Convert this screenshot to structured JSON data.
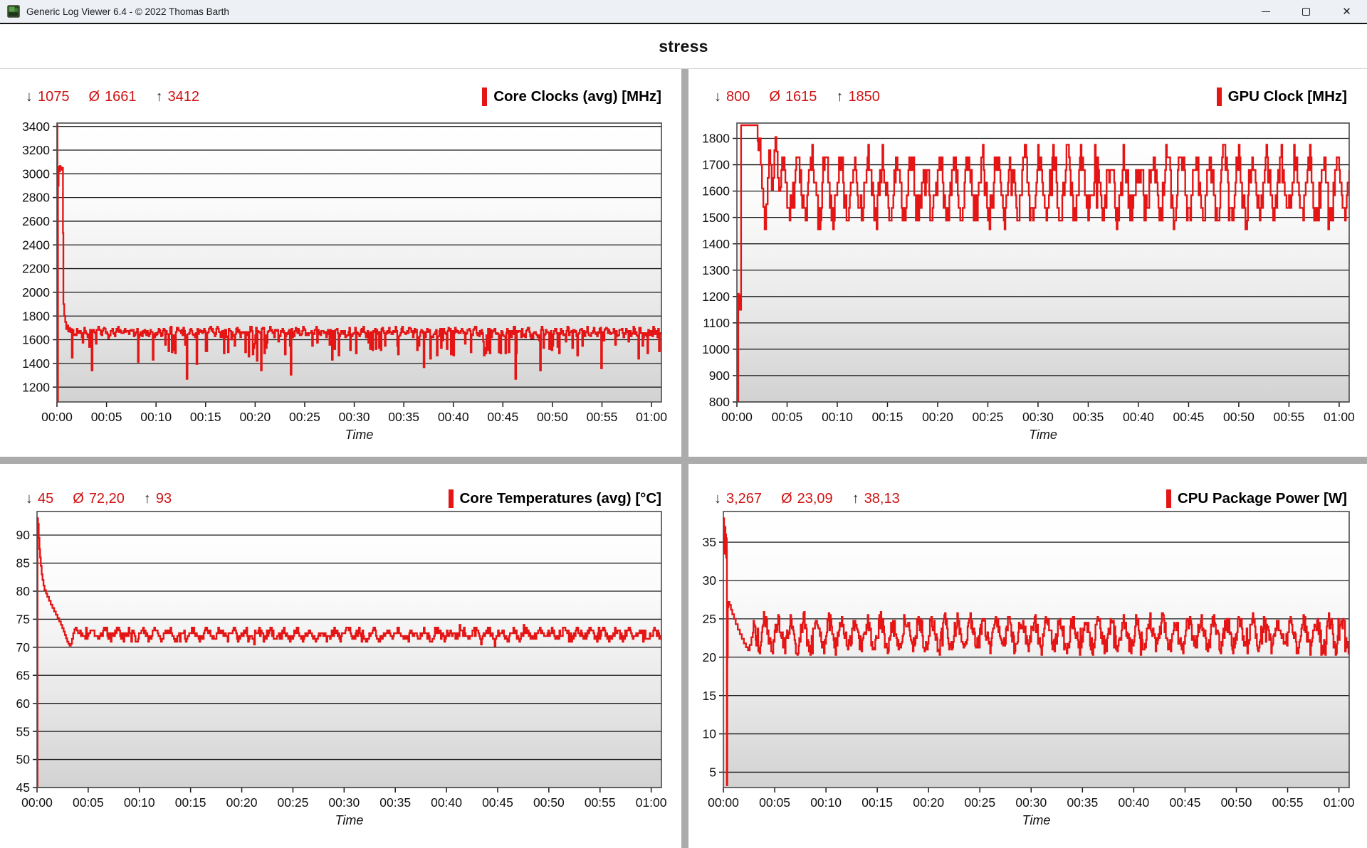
{
  "window": {
    "title": "Generic Log Viewer 6.4 - © 2022 Thomas Barth",
    "controls": {
      "minimize": "minimize",
      "maximize": "maximize",
      "close": "✕"
    }
  },
  "header": {
    "title": "stress"
  },
  "symbols": {
    "min": "↓",
    "avg": "Ø",
    "max": "↑"
  },
  "colors": {
    "accent_red": "#e51515",
    "stat_red": "#cf1212",
    "grid_line": "#1a1a1a",
    "plot_border": "#4a4a4a",
    "divider_gray": "#ababab",
    "plot_gradient_top": "#ffffff",
    "plot_gradient_bottom": "#d2d2d2"
  },
  "chart_data": [
    {
      "name": "core-clocks",
      "type": "line",
      "title": "Core Clocks (avg) [MHz]",
      "stats": {
        "min": "1075",
        "avg": "1661",
        "max": "3412"
      },
      "xlabel": "Time",
      "x_ticks": [
        "00:00",
        "00:05",
        "00:10",
        "00:15",
        "00:20",
        "00:25",
        "00:30",
        "00:35",
        "00:40",
        "00:45",
        "00:50",
        "00:55",
        "01:00"
      ],
      "xlim_seconds": [
        0,
        3660
      ],
      "ylim": [
        1075,
        3428
      ],
      "y_ticks": [
        3400,
        3200,
        3000,
        2800,
        2600,
        2400,
        2200,
        2000,
        1800,
        1600,
        1400,
        1200
      ],
      "series": {
        "transient": [
          [
            0,
            1990
          ],
          [
            2,
            3412
          ],
          [
            3,
            2400
          ],
          [
            4,
            1075
          ],
          [
            6,
            2900
          ],
          [
            10,
            3060
          ],
          [
            14,
            3020
          ],
          [
            18,
            3066
          ],
          [
            22,
            3035
          ],
          [
            26,
            3052
          ],
          [
            30,
            3040
          ],
          [
            33,
            3050
          ],
          [
            36,
            2500
          ],
          [
            39,
            1900
          ],
          [
            44,
            1800
          ],
          [
            50,
            1750
          ],
          [
            56,
            1690
          ],
          [
            62,
            1720
          ],
          [
            68,
            1670
          ],
          [
            74,
            1700
          ],
          [
            80,
            1665
          ],
          [
            86,
            1690
          ]
        ],
        "steady": {
          "from": 90,
          "to": 3660,
          "step": 5,
          "seed": 7,
          "base": 1664,
          "wave_amp": 20,
          "wave_period": 40,
          "noise": 30,
          "quant": 9,
          "dips": {
            "chance": 0.13,
            "min": 60,
            "max": 210
          },
          "dips2": {
            "chance": 0.013,
            "min": 280,
            "max": 400
          },
          "clamp": [
            1270,
            1758
          ]
        }
      }
    },
    {
      "name": "gpu-clock",
      "type": "line",
      "title": "GPU Clock [MHz]",
      "stats": {
        "min": "800",
        "avg": "1615",
        "max": "1850"
      },
      "xlabel": "Time",
      "x_ticks": [
        "00:00",
        "00:05",
        "00:10",
        "00:15",
        "00:20",
        "00:25",
        "00:30",
        "00:35",
        "00:40",
        "00:45",
        "00:50",
        "00:55",
        "01:00"
      ],
      "xlim_seconds": [
        0,
        3660
      ],
      "ylim": [
        800,
        1858
      ],
      "y_ticks": [
        1800,
        1700,
        1600,
        1500,
        1400,
        1300,
        1200,
        1100,
        1000,
        900,
        800
      ],
      "series": {
        "transient": [
          [
            0,
            800
          ],
          [
            6,
            800
          ],
          [
            8,
            1210
          ],
          [
            11,
            1150
          ],
          [
            14,
            1205
          ],
          [
            18,
            1150
          ],
          [
            22,
            1150
          ],
          [
            25,
            1850
          ],
          [
            118,
            1850
          ],
          [
            124,
            1790
          ],
          [
            128,
            1755
          ],
          [
            134,
            1800
          ],
          [
            142,
            1700
          ],
          [
            150,
            1610
          ],
          [
            158,
            1540
          ],
          [
            166,
            1455
          ],
          [
            175,
            1550
          ],
          [
            184,
            1650
          ],
          [
            192,
            1755
          ],
          [
            200,
            1700
          ],
          [
            208,
            1605
          ],
          [
            216,
            1650
          ],
          [
            224,
            1755
          ],
          [
            230,
            1805
          ],
          [
            236,
            1750
          ],
          [
            244,
            1650
          ],
          [
            252,
            1600
          ],
          [
            260,
            1615
          ]
        ],
        "steady": {
          "from": 265,
          "to": 3660,
          "step": 5,
          "seed": 11,
          "base": 1612,
          "wave_amp": 105,
          "wave_period": 85,
          "noise": 58,
          "quant": 48,
          "spikes": {
            "chance": 0.02,
            "min": 40,
            "max": 60
          },
          "dips": {
            "chance": 0.02,
            "min": 60,
            "max": 110
          },
          "clamp": [
            1455,
            1805
          ]
        }
      }
    },
    {
      "name": "core-temperatures",
      "type": "line",
      "title": "Core Temperatures (avg) [°C]",
      "stats": {
        "min": "45",
        "avg": "72,20",
        "max": "93"
      },
      "xlabel": "Time",
      "x_ticks": [
        "00:00",
        "00:05",
        "00:10",
        "00:15",
        "00:20",
        "00:25",
        "00:30",
        "00:35",
        "00:40",
        "00:45",
        "00:50",
        "00:55",
        "01:00"
      ],
      "xlim_seconds": [
        0,
        3660
      ],
      "ylim": [
        45,
        94.2
      ],
      "y_ticks": [
        90,
        85,
        80,
        75,
        70,
        65,
        60,
        55,
        50,
        45
      ],
      "series": {
        "transient": [
          [
            0,
            45
          ],
          [
            2,
            45
          ],
          [
            3,
            93
          ],
          [
            6,
            92
          ],
          [
            10,
            89.5
          ],
          [
            14,
            87.5
          ],
          [
            18,
            86
          ],
          [
            22,
            84.5
          ],
          [
            27,
            83
          ],
          [
            32,
            82
          ],
          [
            38,
            81
          ],
          [
            44,
            80.2
          ],
          [
            52,
            79.6
          ],
          [
            60,
            79
          ],
          [
            70,
            78.3
          ],
          [
            80,
            77.6
          ],
          [
            90,
            77
          ],
          [
            100,
            76.4
          ],
          [
            110,
            75.8
          ],
          [
            120,
            75.2
          ],
          [
            130,
            74.6
          ],
          [
            140,
            74
          ],
          [
            148,
            73.4
          ],
          [
            156,
            72.8
          ],
          [
            163,
            72.2
          ],
          [
            170,
            71.6
          ],
          [
            177,
            71
          ],
          [
            184,
            70.6
          ],
          [
            191,
            70.3
          ],
          [
            198,
            70.6
          ],
          [
            205,
            71.5
          ],
          [
            212,
            72.5
          ],
          [
            219,
            73.2
          ],
          [
            226,
            73.5
          ],
          [
            233,
            73
          ],
          [
            240,
            72.5
          ],
          [
            247,
            72.5
          ]
        ],
        "steady": {
          "from": 252,
          "to": 3660,
          "step": 5,
          "seed": 3,
          "base": 72.3,
          "wave_amp": 0.7,
          "wave_period": 75,
          "noise": 0.75,
          "quant": 0.5,
          "spikes": {
            "chance": 0.02,
            "min": 0.5,
            "max": 1.2
          },
          "dips": {
            "chance": 0.015,
            "min": 1,
            "max": 1.5
          },
          "clamp": [
            70.2,
            74.5
          ]
        }
      }
    },
    {
      "name": "cpu-package-power",
      "type": "line",
      "title": "CPU Package Power [W]",
      "stats": {
        "min": "3,267",
        "avg": "23,09",
        "max": "38,13"
      },
      "xlabel": "Time",
      "x_ticks": [
        "00:00",
        "00:05",
        "00:10",
        "00:15",
        "00:20",
        "00:25",
        "00:30",
        "00:35",
        "00:40",
        "00:45",
        "00:50",
        "00:55",
        "01:00"
      ],
      "xlim_seconds": [
        0,
        3660
      ],
      "ylim": [
        3,
        39
      ],
      "y_ticks": [
        35,
        30,
        25,
        20,
        15,
        10,
        5
      ],
      "series": {
        "transient": [
          [
            0,
            35.5
          ],
          [
            2,
            38.13
          ],
          [
            4,
            34
          ],
          [
            6,
            36.5
          ],
          [
            8,
            33.5
          ],
          [
            10,
            37
          ],
          [
            12,
            34.5
          ],
          [
            14,
            36
          ],
          [
            16,
            33
          ],
          [
            18,
            35.5
          ],
          [
            20,
            34
          ],
          [
            21,
            3.3
          ],
          [
            23,
            20
          ],
          [
            26,
            26.5
          ],
          [
            30,
            27.2
          ],
          [
            36,
            26.8
          ],
          [
            44,
            26.2
          ],
          [
            52,
            25.6
          ],
          [
            62,
            25
          ],
          [
            72,
            24.3
          ],
          [
            84,
            23.6
          ],
          [
            96,
            23
          ],
          [
            108,
            22.4
          ],
          [
            120,
            21.8
          ],
          [
            132,
            21.3
          ],
          [
            144,
            20.9
          ],
          [
            154,
            21.6
          ],
          [
            164,
            22.6
          ],
          [
            172,
            23.2
          ]
        ],
        "steady": {
          "from": 176,
          "to": 3660,
          "step": 4,
          "seed": 5,
          "base": 23.0,
          "wave_amp": 1.7,
          "wave_period": 75,
          "noise": 1.15,
          "quant": 0.25,
          "spikes": {
            "chance": 0.03,
            "min": 0.8,
            "max": 1.8
          },
          "dips": {
            "chance": 0.03,
            "min": 0.8,
            "max": 2.0
          },
          "clamp": [
            20.3,
            25.9
          ]
        }
      }
    }
  ]
}
